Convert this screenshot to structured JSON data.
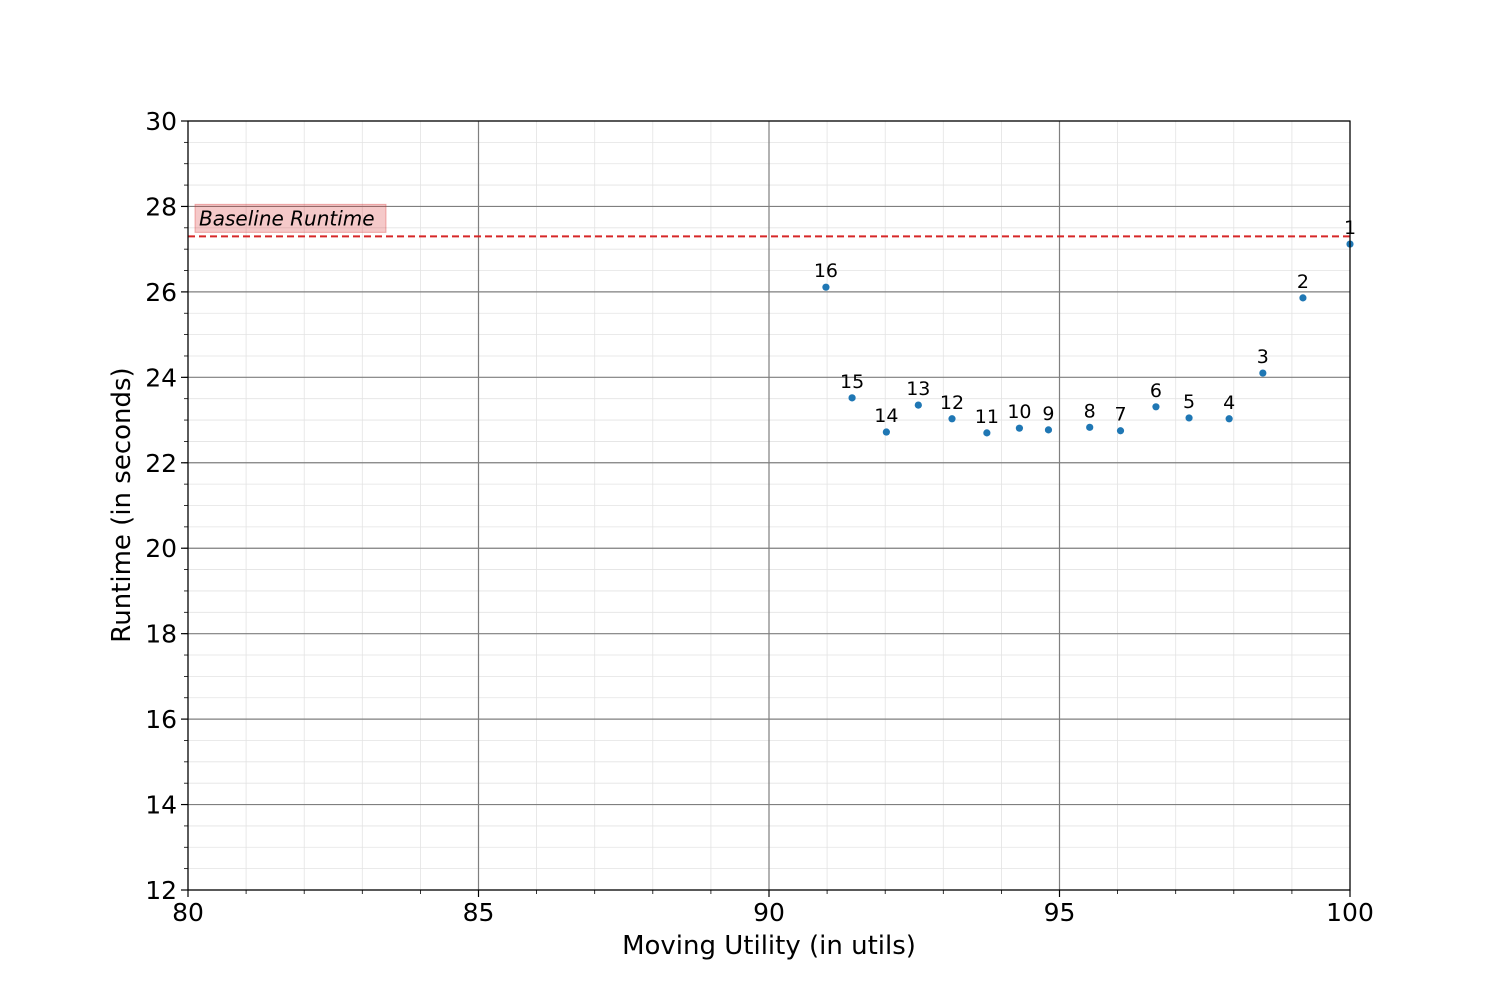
{
  "chart_data": {
    "type": "scatter",
    "xlabel": "Moving Utility (in utils)",
    "ylabel": "Runtime (in seconds)",
    "xlim": [
      80,
      100
    ],
    "ylim": [
      12,
      30
    ],
    "xticks": [
      80,
      85,
      90,
      95,
      100
    ],
    "yticks": [
      12,
      14,
      16,
      18,
      20,
      22,
      24,
      26,
      28,
      30
    ],
    "grid": {
      "major": true,
      "minor": true
    },
    "point_color": "#1f77b4",
    "points": [
      {
        "label": "1",
        "x": 100.0,
        "y": 27.12
      },
      {
        "label": "2",
        "x": 99.19,
        "y": 25.86
      },
      {
        "label": "3",
        "x": 98.5,
        "y": 24.1
      },
      {
        "label": "4",
        "x": 97.92,
        "y": 23.03
      },
      {
        "label": "5",
        "x": 97.23,
        "y": 23.05
      },
      {
        "label": "6",
        "x": 96.66,
        "y": 23.31
      },
      {
        "label": "7",
        "x": 96.05,
        "y": 22.75
      },
      {
        "label": "8",
        "x": 95.52,
        "y": 22.83
      },
      {
        "label": "9",
        "x": 94.81,
        "y": 22.77
      },
      {
        "label": "10",
        "x": 94.31,
        "y": 22.81
      },
      {
        "label": "11",
        "x": 93.75,
        "y": 22.7
      },
      {
        "label": "12",
        "x": 93.15,
        "y": 23.03
      },
      {
        "label": "13",
        "x": 92.57,
        "y": 23.35
      },
      {
        "label": "14",
        "x": 92.02,
        "y": 22.72
      },
      {
        "label": "15",
        "x": 91.43,
        "y": 23.52
      },
      {
        "label": "16",
        "x": 90.98,
        "y": 26.11
      }
    ],
    "baseline": {
      "label": "Baseline Runtime",
      "y": 27.3,
      "color": "#d62728",
      "style": "dashed"
    }
  }
}
